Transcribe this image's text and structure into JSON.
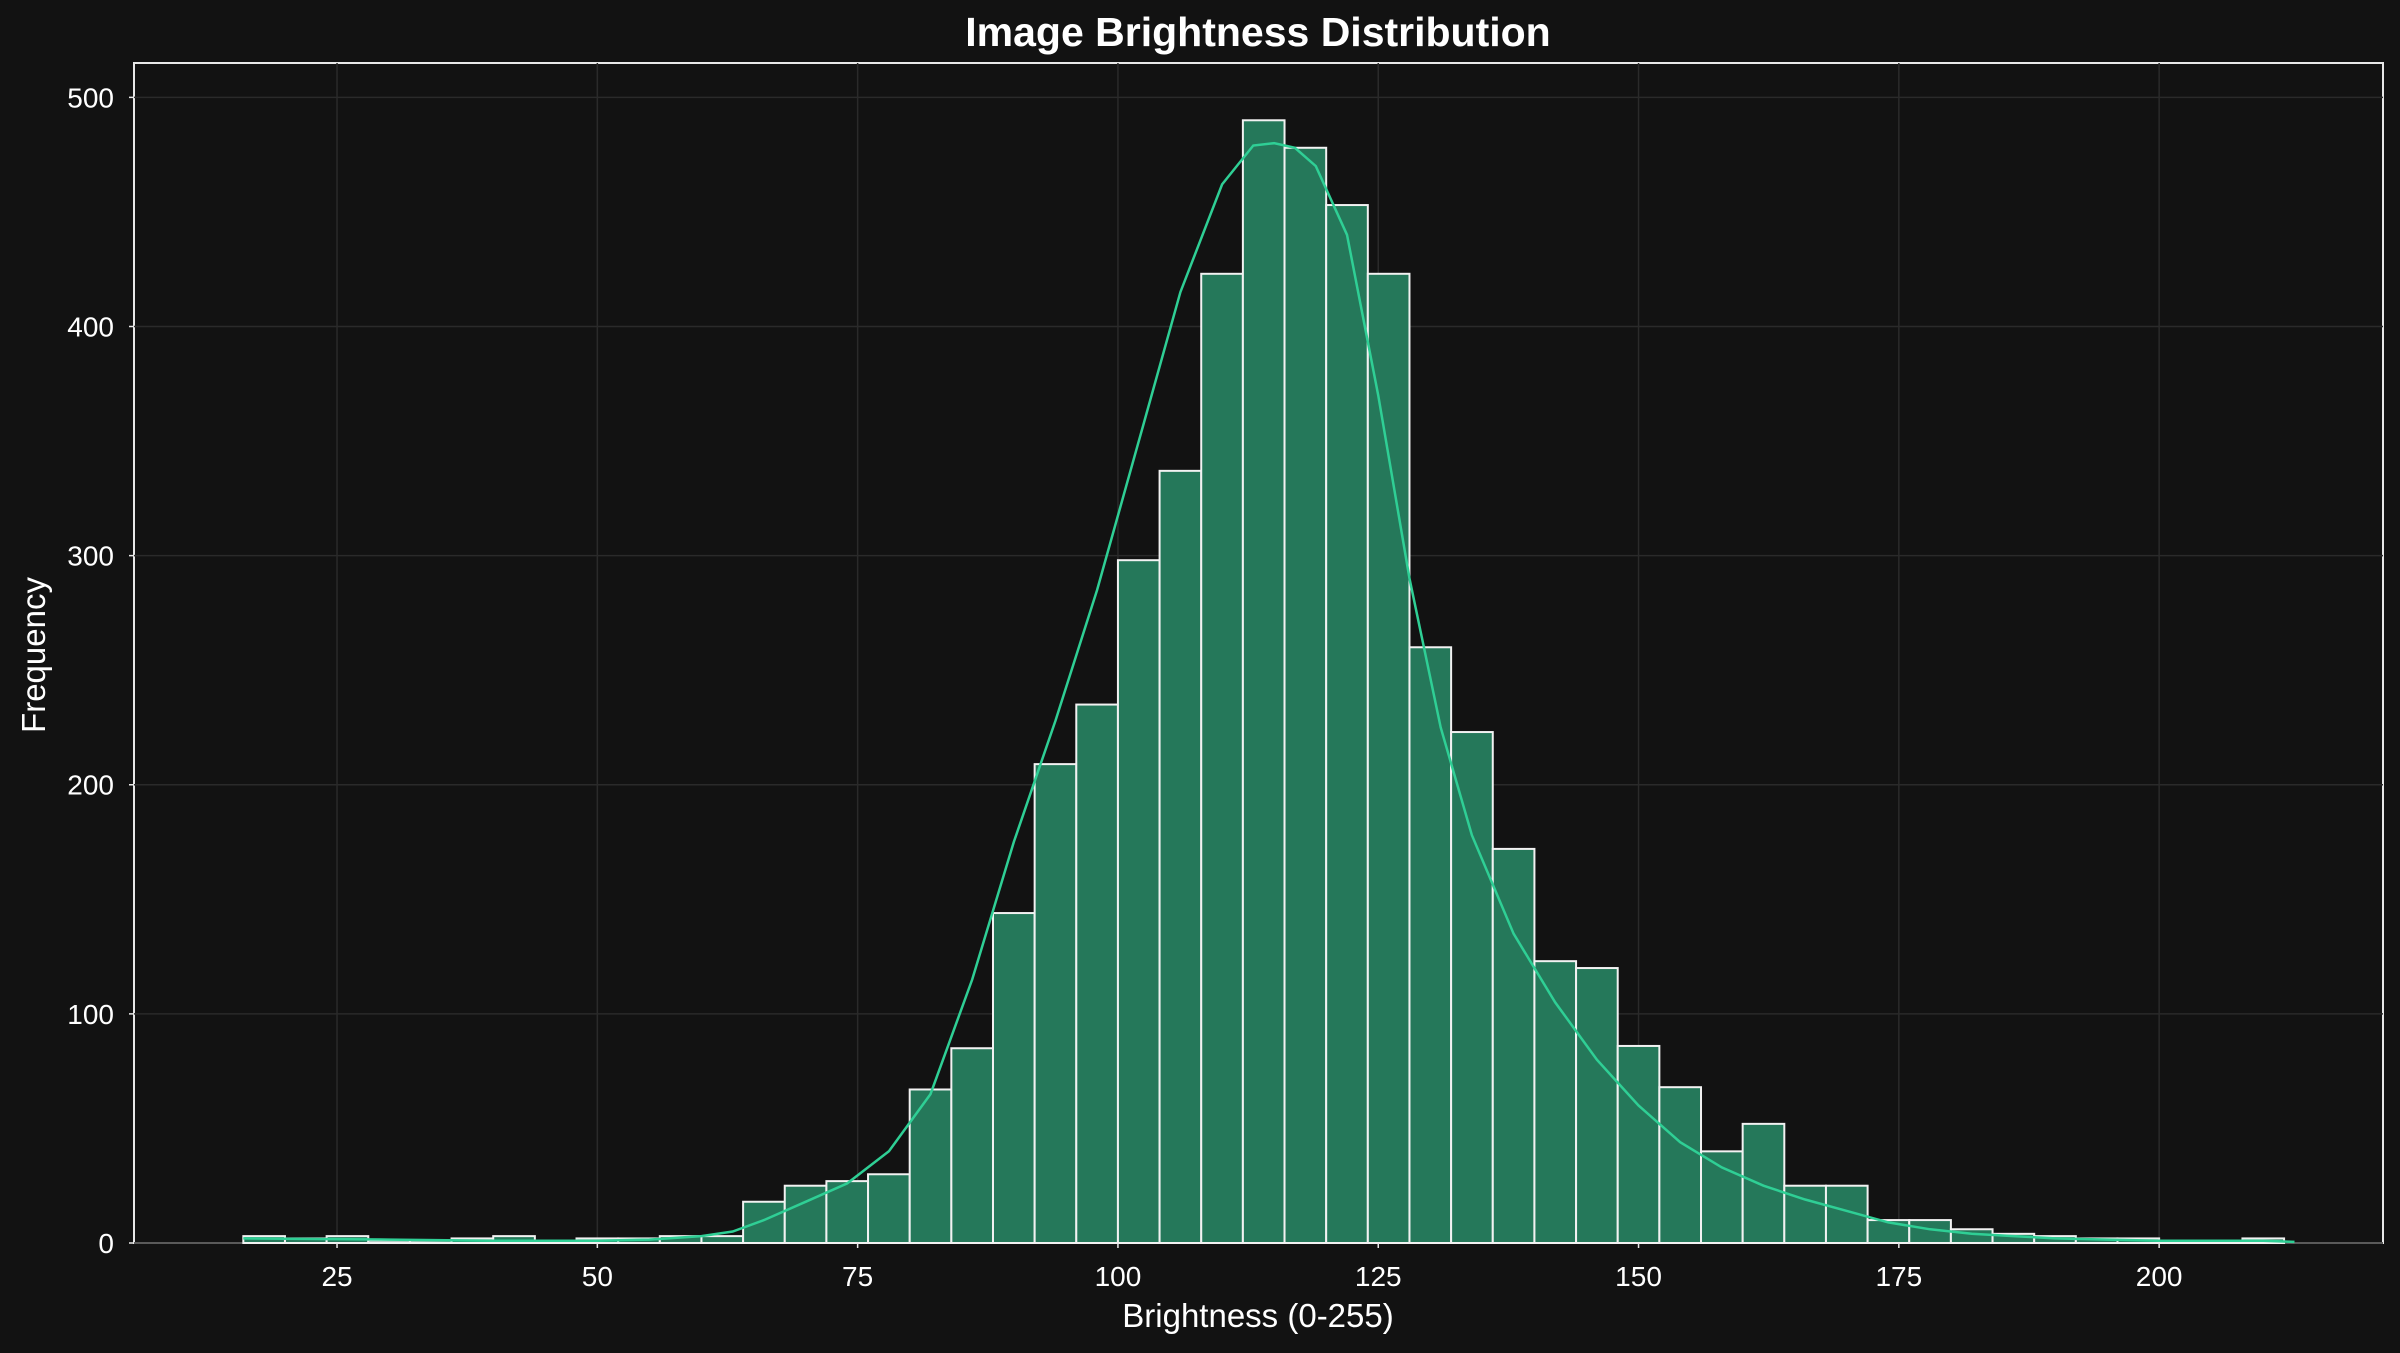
{
  "chart_data": {
    "type": "bar",
    "title": "Image Brightness Distribution",
    "xlabel": "Brightness (0-255)",
    "ylabel": "Frequency",
    "xlim": [
      5.5,
      221.5
    ],
    "ylim": [
      0,
      515
    ],
    "xticks": [
      25,
      50,
      75,
      100,
      125,
      150,
      175,
      200
    ],
    "yticks": [
      0,
      100,
      200,
      300,
      400,
      500
    ],
    "grid": true,
    "bar_color": "#25785a",
    "kde_color": "#2fcf95",
    "bin_edges": [
      16,
      20,
      24,
      28,
      32,
      36,
      40,
      44,
      48,
      52,
      56,
      60,
      64,
      68,
      72,
      76,
      80,
      84,
      88,
      92,
      96,
      100,
      104,
      108,
      112,
      116,
      120,
      124,
      128,
      132,
      136,
      140,
      144,
      148,
      152,
      156,
      160,
      164,
      168,
      172,
      176,
      180,
      184,
      188,
      192,
      196,
      200,
      204,
      208,
      212
    ],
    "values": [
      3,
      2,
      3,
      1,
      1,
      2,
      3,
      1,
      2,
      2,
      3,
      3,
      18,
      25,
      27,
      30,
      67,
      85,
      144,
      209,
      235,
      298,
      337,
      423,
      490,
      478,
      453,
      423,
      260,
      223,
      172,
      123,
      120,
      86,
      68,
      40,
      52,
      25,
      25,
      10,
      10,
      6,
      4,
      3,
      2,
      2,
      1,
      1,
      2
    ],
    "kde": {
      "x": [
        16,
        30,
        40,
        50,
        55,
        60,
        63,
        66,
        70,
        74,
        78,
        82,
        86,
        90,
        94,
        98,
        102,
        106,
        110,
        113,
        115,
        117,
        119,
        122,
        125,
        128,
        131,
        134,
        138,
        142,
        146,
        150,
        154,
        158,
        162,
        166,
        170,
        174,
        178,
        182,
        186,
        190,
        195,
        200,
        205,
        210,
        213
      ],
      "y": [
        2,
        1.5,
        1,
        1,
        1.5,
        3,
        5,
        10,
        18,
        26,
        40,
        65,
        115,
        175,
        228,
        285,
        350,
        415,
        462,
        479,
        480,
        478,
        470,
        440,
        370,
        290,
        225,
        178,
        135,
        105,
        80,
        60,
        44,
        33,
        25,
        19,
        14,
        9,
        6,
        4,
        3,
        2,
        1.5,
        1,
        1,
        1,
        0.5
      ]
    }
  }
}
